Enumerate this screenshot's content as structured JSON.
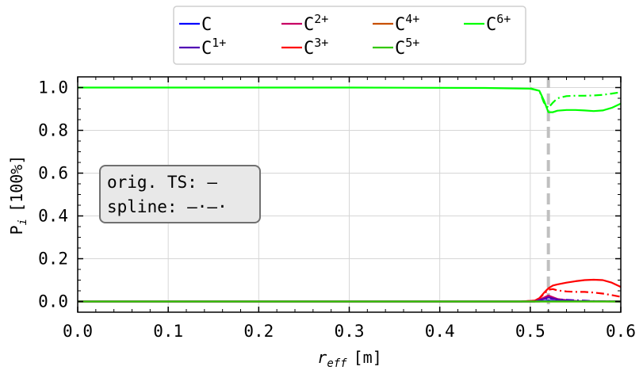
{
  "chart_data": {
    "type": "line",
    "xlabel_main": "r",
    "xlabel_sub": "eff",
    "xlabel_unit": "[m]",
    "ylabel_main": "P",
    "ylabel_sub": "i",
    "ylabel_unit": "[100%]",
    "xlim": [
      0.0,
      0.6
    ],
    "ylim": [
      -0.05,
      1.05
    ],
    "xticks": [
      "0.0",
      "0.1",
      "0.2",
      "0.3",
      "0.4",
      "0.5",
      "0.6"
    ],
    "yticks": [
      "0.0",
      "0.2",
      "0.4",
      "0.6",
      "0.8",
      "1.0"
    ],
    "grid": true,
    "vline_x": 0.52,
    "vline_color": "#c0c0c0",
    "annotation": {
      "line1": "orig. TS: —",
      "line2": "spline: —·—·"
    },
    "legend_position": "top-center",
    "legend": [
      {
        "base": "C",
        "sup": "",
        "color": "#0000ff"
      },
      {
        "base": "C",
        "sup": "1+",
        "color": "#5000b4"
      },
      {
        "base": "C",
        "sup": "2+",
        "color": "#c80064"
      },
      {
        "base": "C",
        "sup": "3+",
        "color": "#ff0000"
      },
      {
        "base": "C",
        "sup": "4+",
        "color": "#c85000"
      },
      {
        "base": "C",
        "sup": "5+",
        "color": "#32c800"
      },
      {
        "base": "C",
        "sup": "6+",
        "color": "#00ff00"
      }
    ],
    "series": [
      {
        "color": "#00ff00",
        "style": "solid",
        "x": [
          0.0,
          0.3,
          0.45,
          0.5,
          0.51,
          0.515,
          0.52,
          0.525,
          0.53,
          0.54,
          0.55,
          0.56,
          0.57,
          0.58,
          0.59,
          0.6
        ],
        "y": [
          1.0,
          1.0,
          0.998,
          0.995,
          0.985,
          0.94,
          0.885,
          0.885,
          0.892,
          0.895,
          0.895,
          0.893,
          0.89,
          0.893,
          0.905,
          0.925
        ]
      },
      {
        "color": "#00ff00",
        "style": "dashdot",
        "x": [
          0.5,
          0.51,
          0.515,
          0.52,
          0.525,
          0.53,
          0.54,
          0.55,
          0.56,
          0.57,
          0.58,
          0.59,
          0.6
        ],
        "y": [
          0.997,
          0.985,
          0.93,
          0.905,
          0.93,
          0.95,
          0.96,
          0.962,
          0.962,
          0.963,
          0.966,
          0.972,
          0.978
        ]
      },
      {
        "color": "#ff0000",
        "style": "solid",
        "x": [
          0.0,
          0.49,
          0.505,
          0.51,
          0.515,
          0.52,
          0.525,
          0.53,
          0.54,
          0.55,
          0.56,
          0.57,
          0.58,
          0.59,
          0.6
        ],
        "y": [
          0.0,
          0.0,
          0.004,
          0.015,
          0.04,
          0.062,
          0.075,
          0.08,
          0.088,
          0.095,
          0.1,
          0.102,
          0.1,
          0.088,
          0.068
        ]
      },
      {
        "color": "#ff0000",
        "style": "dashdot",
        "x": [
          0.49,
          0.505,
          0.51,
          0.515,
          0.52,
          0.525,
          0.53,
          0.54,
          0.55,
          0.56,
          0.57,
          0.58,
          0.59,
          0.6
        ],
        "y": [
          0.0,
          0.004,
          0.015,
          0.035,
          0.055,
          0.058,
          0.052,
          0.047,
          0.045,
          0.045,
          0.042,
          0.037,
          0.03,
          0.022
        ]
      },
      {
        "color": "#c80064",
        "style": "solid",
        "x": [
          0.0,
          0.505,
          0.515,
          0.52,
          0.525,
          0.53,
          0.54,
          0.55,
          0.56,
          0.6
        ],
        "y": [
          0.0,
          0.0,
          0.018,
          0.028,
          0.02,
          0.012,
          0.006,
          0.003,
          0.001,
          0.0
        ]
      },
      {
        "color": "#5000b4",
        "style": "solid",
        "x": [
          0.0,
          0.505,
          0.515,
          0.52,
          0.525,
          0.53,
          0.54,
          0.55,
          0.6
        ],
        "y": [
          0.0,
          0.0,
          0.012,
          0.02,
          0.014,
          0.008,
          0.004,
          0.002,
          0.0
        ]
      },
      {
        "color": "#5000b4",
        "style": "dashdot",
        "x": [
          0.505,
          0.515,
          0.52,
          0.525,
          0.53,
          0.54,
          0.55,
          0.56,
          0.57,
          0.6
        ],
        "y": [
          0.0,
          0.01,
          0.015,
          0.012,
          0.01,
          0.008,
          0.006,
          0.004,
          0.002,
          0.0
        ]
      },
      {
        "color": "#0000ff",
        "style": "solid",
        "x": [
          0.0,
          0.51,
          0.52,
          0.53,
          0.6
        ],
        "y": [
          0.0,
          0.0,
          0.004,
          0.001,
          0.0
        ]
      },
      {
        "color": "#c85000",
        "style": "solid",
        "x": [
          0.0,
          0.6
        ],
        "y": [
          0.0,
          0.0
        ]
      },
      {
        "color": "#32c800",
        "style": "solid",
        "x": [
          0.0,
          0.6
        ],
        "y": [
          0.0,
          0.0
        ]
      }
    ]
  }
}
